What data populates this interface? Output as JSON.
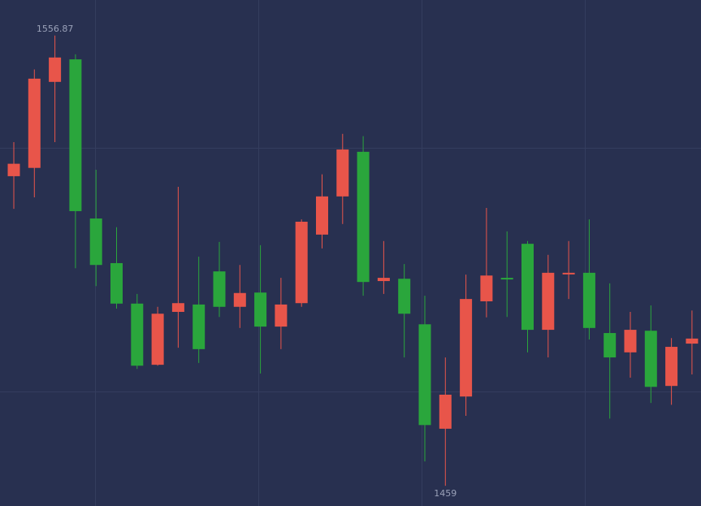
{
  "chart_data": {
    "type": "candlestick",
    "open": [
      1526.3,
      1528.1,
      1546.8,
      1551.7,
      1517.1,
      1507.4,
      1498.6,
      1485.3,
      1496.8,
      1498.4,
      1505.6,
      1497.9,
      1501.0,
      1493.6,
      1498.7,
      1513.6,
      1521.9,
      1531.6,
      1503.5,
      1504.0,
      1494.1,
      1471.4,
      1478.4,
      1499.1,
      1504.2,
      1511.6,
      1492.9,
      1505.1,
      1505.3,
      1492.2,
      1488.0,
      1492.7,
      1480.7,
      1489.9
    ],
    "high": [
      1533.7,
      1549.5,
      1556.87,
      1552.8,
      1527.7,
      1515.2,
      1500.7,
      1497.9,
      1524.0,
      1508.8,
      1512.0,
      1507.0,
      1511.3,
      1504.2,
      1516.9,
      1526.7,
      1535.5,
      1535.0,
      1512.2,
      1507.2,
      1500.3,
      1486.9,
      1504.9,
      1519.4,
      1514.3,
      1512.2,
      1509.2,
      1512.2,
      1516.9,
      1503.0,
      1496.8,
      1498.2,
      1491.1,
      1497.1
    ],
    "low": [
      1519.2,
      1521.7,
      1533.7,
      1506.3,
      1502.4,
      1497.5,
      1484.4,
      1485.1,
      1489.0,
      1485.7,
      1495.7,
      1493.3,
      1483.4,
      1488.7,
      1497.9,
      1510.6,
      1515.9,
      1500.3,
      1500.7,
      1486.9,
      1464.3,
      1459,
      1474.2,
      1495.6,
      1495.7,
      1488.0,
      1486.9,
      1499.6,
      1490.8,
      1473.6,
      1482.5,
      1477.0,
      1476.6,
      1483.2
    ],
    "close": [
      1529.0,
      1547.5,
      1552.1,
      1518.7,
      1507.0,
      1498.6,
      1485.1,
      1496.4,
      1498.7,
      1488.7,
      1497.9,
      1500.9,
      1493.6,
      1498.4,
      1516.4,
      1521.9,
      1532.1,
      1503.3,
      1504.2,
      1496.4,
      1472.2,
      1478.8,
      1499.6,
      1504.7,
      1503.9,
      1492.9,
      1505.3,
      1505.3,
      1493.3,
      1486.9,
      1492.9,
      1480.5,
      1489.2,
      1491.0
    ],
    "up_color": "#e8554a",
    "down_color": "#2aa63c",
    "max_label": "1556.87",
    "min_label": "1459",
    "ylim": [
      1454.6,
      1564.6
    ],
    "yticks": [
      1479.5,
      1532.5
    ],
    "grid": true
  }
}
